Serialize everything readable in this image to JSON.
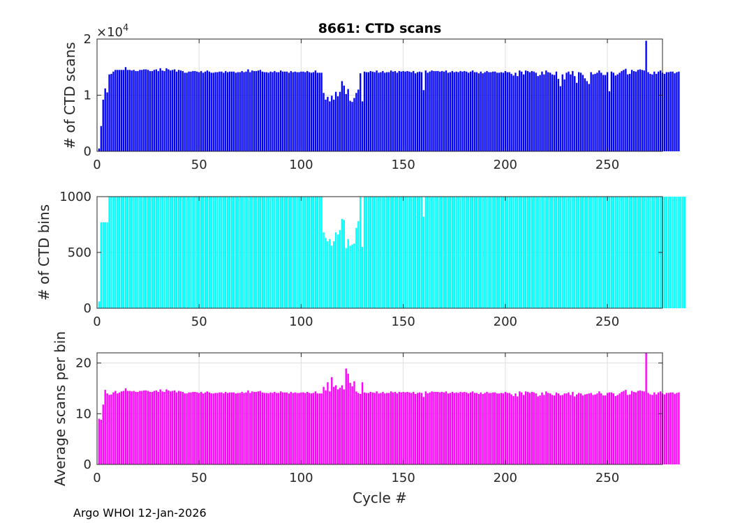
{
  "page": {
    "title": "8661: CTD scans",
    "footer": "Argo WHOI 12-Jan-2026"
  },
  "colors": {
    "scans": "#0000ff",
    "bins": "#00ffff",
    "avg": "#ff00ff",
    "axis": "#262626",
    "grid": "#dfdfdf"
  },
  "chart_data": [
    {
      "type": "bar",
      "title": "8661: CTD scans",
      "xlabel": "",
      "ylabel": "# of CTD scans",
      "scale_label": "×10",
      "scale_exponent": "4",
      "xlim": [
        0,
        277
      ],
      "ylim": [
        0,
        2
      ],
      "xticks": [
        0,
        50,
        100,
        150,
        200,
        250
      ],
      "yticks": [
        0,
        1,
        2
      ],
      "color": "#0000ff",
      "series_unit": "×10^4 scans",
      "values": [
        0.05,
        0.45,
        0.92,
        1.12,
        1.05,
        1.37,
        1.38,
        1.42,
        1.45,
        1.45,
        1.45,
        1.45,
        1.45,
        1.5,
        1.45,
        1.45,
        1.44,
        1.45,
        1.43,
        1.43,
        1.45,
        1.45,
        1.46,
        1.46,
        1.45,
        1.43,
        1.43,
        1.45,
        1.46,
        1.43,
        1.48,
        1.44,
        1.43,
        1.48,
        1.46,
        1.44,
        1.45,
        1.46,
        1.42,
        1.45,
        1.44,
        1.43,
        1.4,
        1.4,
        1.42,
        1.42,
        1.43,
        1.43,
        1.42,
        1.41,
        1.43,
        1.4,
        1.42,
        1.44,
        1.42,
        1.4,
        1.4,
        1.41,
        1.41,
        1.42,
        1.42,
        1.4,
        1.43,
        1.41,
        1.42,
        1.42,
        1.42,
        1.4,
        1.41,
        1.41,
        1.43,
        1.41,
        1.42,
        1.46,
        1.41,
        1.44,
        1.43,
        1.43,
        1.44,
        1.45,
        1.42,
        1.41,
        1.41,
        1.4,
        1.42,
        1.41,
        1.43,
        1.41,
        1.41,
        1.44,
        1.42,
        1.42,
        1.42,
        1.4,
        1.43,
        1.41,
        1.42,
        1.41,
        1.41,
        1.42,
        1.42,
        1.41,
        1.43,
        1.41,
        1.4,
        1.41,
        1.44,
        1.4,
        1.4,
        1.4,
        1.04,
        0.92,
        0.97,
        0.89,
        0.99,
        0.92,
        1.06,
        0.98,
        1.06,
        1.25,
        1.17,
        1.02,
        1.11,
        0.9,
        0.88,
        0.95,
        1.04,
        1.1,
        1.39,
        0.89,
        1.42,
        1.41,
        1.41,
        1.43,
        1.42,
        1.41,
        1.44,
        1.4,
        1.41,
        1.43,
        1.4,
        1.41,
        1.41,
        1.44,
        1.42,
        1.43,
        1.4,
        1.43,
        1.42,
        1.43,
        1.42,
        1.43,
        1.42,
        1.41,
        1.43,
        1.39,
        1.41,
        1.42,
        1.41,
        1.09,
        1.44,
        1.4,
        1.42,
        1.44,
        1.43,
        1.43,
        1.43,
        1.42,
        1.43,
        1.42,
        1.44,
        1.4,
        1.41,
        1.43,
        1.41,
        1.42,
        1.41,
        1.43,
        1.42,
        1.43,
        1.42,
        1.4,
        1.42,
        1.44,
        1.41,
        1.41,
        1.39,
        1.42,
        1.39,
        1.41,
        1.43,
        1.41,
        1.41,
        1.42,
        1.42,
        1.4,
        1.4,
        1.41,
        1.4,
        1.43,
        1.41,
        1.41,
        1.38,
        1.35,
        1.4,
        1.34,
        1.44,
        1.42,
        1.37,
        1.44,
        1.43,
        1.41,
        1.43,
        1.42,
        1.4,
        1.34,
        1.36,
        1.42,
        1.37,
        1.44,
        1.41,
        1.4,
        1.37,
        1.36,
        1.42,
        1.29,
        1.16,
        1.37,
        1.28,
        1.4,
        1.42,
        1.37,
        1.43,
        1.34,
        1.22,
        1.41,
        1.4,
        1.36,
        1.3,
        1.25,
        1.2,
        1.41,
        1.37,
        1.38,
        1.4,
        1.44,
        1.4,
        1.36,
        1.36,
        1.41,
        1.07,
        1.42,
        1.4,
        1.35,
        1.37,
        1.4,
        1.43,
        1.45,
        1.47,
        1.37,
        1.38,
        1.45,
        1.43,
        1.42,
        1.45,
        1.46,
        1.45,
        1.44,
        1.97,
        1.41,
        1.38,
        1.37,
        1.42,
        1.38,
        1.42,
        1.44,
        1.4,
        1.38,
        1.41,
        1.41,
        1.42,
        1.42,
        1.39,
        1.41,
        1.42
      ]
    },
    {
      "type": "bar",
      "ylabel": "# of CTD bins",
      "xlim": [
        0,
        277
      ],
      "ylim": [
        0,
        1000
      ],
      "xticks": [
        0,
        50,
        100,
        150,
        200,
        250
      ],
      "yticks": [
        0,
        500,
        1000
      ],
      "color": "#00ffff",
      "values": [
        60,
        770,
        770,
        770,
        770,
        1000,
        1000,
        1000,
        1000,
        1000,
        1000,
        1000,
        1000,
        1000,
        1000,
        1000,
        1000,
        1000,
        1000,
        1000,
        1000,
        1000,
        1000,
        1000,
        1000,
        1000,
        1000,
        1000,
        1000,
        1000,
        1000,
        1000,
        1000,
        1000,
        1000,
        1000,
        1000,
        1000,
        1000,
        1000,
        1000,
        1000,
        1000,
        1000,
        1000,
        1000,
        1000,
        1000,
        1000,
        1000,
        1000,
        1000,
        1000,
        1000,
        1000,
        1000,
        1000,
        1000,
        1000,
        1000,
        1000,
        1000,
        1000,
        1000,
        1000,
        1000,
        1000,
        1000,
        1000,
        1000,
        1000,
        1000,
        1000,
        1000,
        1000,
        1000,
        1000,
        1000,
        1000,
        1000,
        1000,
        1000,
        1000,
        1000,
        1000,
        1000,
        1000,
        1000,
        1000,
        1000,
        1000,
        1000,
        1000,
        1000,
        1000,
        1000,
        1000,
        1000,
        1000,
        1000,
        1000,
        1000,
        1000,
        1000,
        1000,
        1000,
        1000,
        1000,
        1000,
        1000,
        680,
        630,
        600,
        620,
        560,
        600,
        680,
        660,
        700,
        800,
        790,
        540,
        620,
        560,
        570,
        580,
        720,
        780,
        1000,
        550,
        1000,
        1000,
        1000,
        1000,
        1000,
        1000,
        1000,
        1000,
        1000,
        1000,
        1000,
        1000,
        1000,
        1000,
        1000,
        1000,
        1000,
        1000,
        1000,
        1000,
        1000,
        1000,
        1000,
        1000,
        1000,
        1000,
        1000,
        1000,
        1000,
        820,
        1000,
        1000,
        1000,
        1000,
        1000,
        1000,
        1000,
        1000,
        1000,
        1000,
        1000,
        1000,
        1000,
        1000,
        1000,
        1000,
        1000,
        1000,
        1000,
        1000,
        1000,
        1000,
        1000,
        1000,
        1000,
        1000,
        1000,
        1000,
        1000,
        1000,
        1000,
        1000,
        1000,
        1000,
        1000,
        1000,
        1000,
        1000,
        1000,
        1000,
        1000,
        1000,
        1000,
        1000,
        1000,
        1000,
        1000,
        1000,
        1000,
        1000,
        1000,
        1000,
        1000,
        1000,
        1000,
        1000,
        1000,
        1000,
        1000,
        1000,
        1000,
        1000,
        1000,
        1000,
        1000,
        1000,
        1000,
        1000,
        1000,
        1000,
        1000,
        1000,
        1000,
        1000,
        1000,
        1000,
        1000,
        1000,
        1000,
        1000,
        1000,
        1000,
        1000,
        1000,
        1000,
        1000,
        1000,
        1000,
        1000,
        1000,
        1000,
        1000,
        1000,
        1000,
        1000,
        1000,
        1000,
        1000,
        1000,
        1000,
        1000,
        1000,
        1000,
        1000,
        1000,
        1000,
        1000,
        1000,
        1000,
        1000,
        1000,
        1000,
        1000,
        1000,
        1000,
        1000,
        1000,
        1000,
        1000,
        1000,
        1000,
        1000,
        1000,
        1000,
        1000,
        1000,
        1000,
        1000
      ]
    },
    {
      "type": "bar",
      "ylabel": "Average scans per bin",
      "xlabel": "Cycle #",
      "xlim": [
        0,
        277
      ],
      "ylim": [
        0,
        22
      ],
      "xticks": [
        0,
        50,
        100,
        150,
        200,
        250
      ],
      "yticks": [
        0,
        10,
        20
      ],
      "color": "#ff00ff",
      "values": [
        9.0,
        8.8,
        11.8,
        14.7,
        14.0,
        13.7,
        13.8,
        14.2,
        14.5,
        14.0,
        14.2,
        14.4,
        14.5,
        15.0,
        14.5,
        14.5,
        14.4,
        14.5,
        14.3,
        14.3,
        14.5,
        14.5,
        14.6,
        14.6,
        14.5,
        14.3,
        14.3,
        14.5,
        14.6,
        14.3,
        14.8,
        14.4,
        14.3,
        14.8,
        14.6,
        14.4,
        14.5,
        14.6,
        14.2,
        14.5,
        14.4,
        14.3,
        14.0,
        14.0,
        14.2,
        14.2,
        14.3,
        14.3,
        14.2,
        14.1,
        14.3,
        14.0,
        14.2,
        14.4,
        14.2,
        14.0,
        14.0,
        14.1,
        14.1,
        14.2,
        14.2,
        14.0,
        14.3,
        14.1,
        14.2,
        14.2,
        14.2,
        14.0,
        14.1,
        14.1,
        14.3,
        14.1,
        14.2,
        14.6,
        14.1,
        14.4,
        14.3,
        14.3,
        14.4,
        14.5,
        14.2,
        14.1,
        14.1,
        14.0,
        14.2,
        14.1,
        14.3,
        14.1,
        14.1,
        14.4,
        14.2,
        14.2,
        14.2,
        14.0,
        14.3,
        14.1,
        14.2,
        14.1,
        14.1,
        14.2,
        14.2,
        14.1,
        14.3,
        14.1,
        14.0,
        14.1,
        14.4,
        14.0,
        14.0,
        14.0,
        15.3,
        14.6,
        16.2,
        14.4,
        17.2,
        15.3,
        15.6,
        14.8,
        15.1,
        15.6,
        14.8,
        18.9,
        17.9,
        16.1,
        15.4,
        16.4,
        14.4,
        14.1,
        13.9,
        16.2,
        14.2,
        14.1,
        14.1,
        14.3,
        14.2,
        14.1,
        14.4,
        14.0,
        14.1,
        14.3,
        14.0,
        14.1,
        14.1,
        14.4,
        14.2,
        14.3,
        14.0,
        14.3,
        14.2,
        14.3,
        14.2,
        14.3,
        14.2,
        14.1,
        14.3,
        13.9,
        14.1,
        14.2,
        14.1,
        13.3,
        14.4,
        14.0,
        14.2,
        14.4,
        14.3,
        14.3,
        14.3,
        14.2,
        14.3,
        14.2,
        14.4,
        14.0,
        14.1,
        14.3,
        14.1,
        14.2,
        14.1,
        14.3,
        14.2,
        14.3,
        14.2,
        14.0,
        14.2,
        14.4,
        14.1,
        14.1,
        13.9,
        14.2,
        13.9,
        14.1,
        14.3,
        14.1,
        14.1,
        14.2,
        14.2,
        14.0,
        14.0,
        14.1,
        14.0,
        14.3,
        14.1,
        14.1,
        13.8,
        13.5,
        14.0,
        13.4,
        14.4,
        14.2,
        13.7,
        14.4,
        14.3,
        14.1,
        14.3,
        14.2,
        14.0,
        13.4,
        13.6,
        14.2,
        13.7,
        14.4,
        14.1,
        14.0,
        13.7,
        13.6,
        14.2,
        14.0,
        13.6,
        13.7,
        14.0,
        14.0,
        14.2,
        13.7,
        14.3,
        13.4,
        13.8,
        14.1,
        14.0,
        13.6,
        13.8,
        13.9,
        14.0,
        14.1,
        13.7,
        13.8,
        14.0,
        14.4,
        14.0,
        13.6,
        13.6,
        14.1,
        14.2,
        14.2,
        14.0,
        13.5,
        13.7,
        14.0,
        14.3,
        14.5,
        14.7,
        13.7,
        13.8,
        14.5,
        14.3,
        14.2,
        14.5,
        14.6,
        14.5,
        14.4,
        22.0,
        14.1,
        13.8,
        13.7,
        14.2,
        13.8,
        14.2,
        14.4,
        14.0,
        13.8,
        14.1,
        14.1,
        14.2,
        14.2,
        13.9,
        14.1,
        14.2
      ]
    }
  ]
}
